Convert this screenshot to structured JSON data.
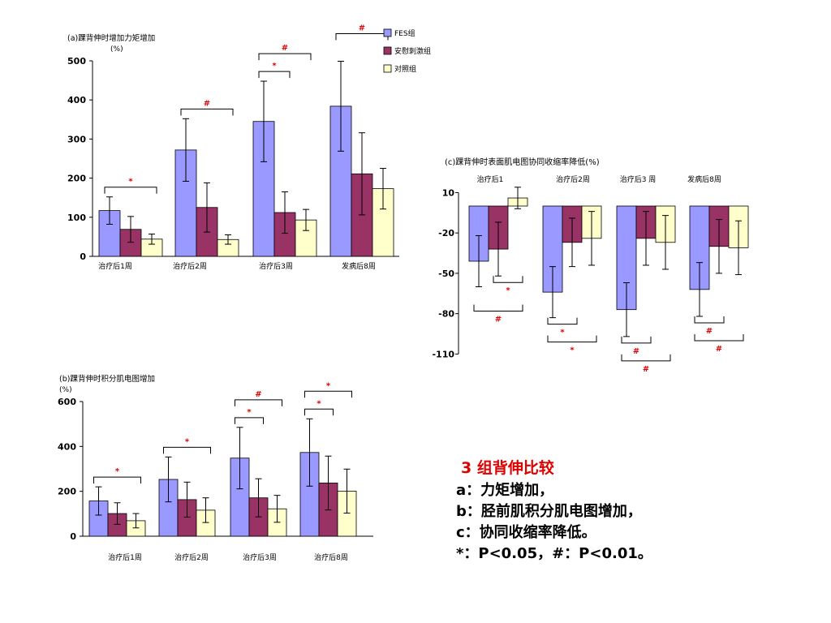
{
  "colors": {
    "fes": "#9999ff",
    "placebo": "#993366",
    "control": "#ffffcc",
    "sig": "#e00000",
    "axis": "#000000"
  },
  "legend": {
    "items": [
      {
        "label": "FES组",
        "key": "fes"
      },
      {
        "label": "安慰刺激组",
        "key": "placebo"
      },
      {
        "label": "对照组",
        "key": "control"
      }
    ]
  },
  "chart_data": [
    {
      "id": "a",
      "type": "bar",
      "title": "(a)踝背伸时增加力矩增加",
      "ylabel": "(%)",
      "categories": [
        "治疗后1周",
        "治疗后2周",
        "治疗后3周",
        "发病后8周"
      ],
      "ylim": [
        0,
        500
      ],
      "yticks": [
        0,
        100,
        200,
        300,
        400,
        500
      ],
      "series": [
        {
          "name": "FES组",
          "key": "fes",
          "values": [
            117,
            272,
            345,
            384
          ],
          "errors": [
            35,
            80,
            103,
            115
          ]
        },
        {
          "name": "安慰刺激组",
          "key": "placebo",
          "values": [
            69,
            125,
            112,
            211
          ],
          "errors": [
            33,
            63,
            53,
            105
          ]
        },
        {
          "name": "对照组",
          "key": "control",
          "values": [
            44,
            43,
            93,
            173
          ],
          "errors": [
            13,
            12,
            27,
            52
          ]
        }
      ],
      "annotations": [
        {
          "label": "*",
          "cat": 0,
          "from": 0,
          "to": 2,
          "level": 1
        },
        {
          "label": "#",
          "cat": 1,
          "from": 0,
          "to": 2,
          "level": 1
        },
        {
          "label": "*",
          "cat": 2,
          "from": 0,
          "to": 1,
          "level": 1
        },
        {
          "label": "#",
          "cat": 2,
          "from": 0,
          "to": 2,
          "level": 2
        },
        {
          "label": "#",
          "cat": 3,
          "from": 0,
          "to": 2,
          "level": 2
        }
      ]
    },
    {
      "id": "b",
      "type": "bar",
      "title": "(b)踝背伸时积分肌电图增加",
      "ylabel": "(%)",
      "categories": [
        "治疗后1周",
        "治疗后2周",
        "治疗后3周",
        "治疗后8周"
      ],
      "ylim": [
        0,
        600
      ],
      "yticks": [
        0,
        200,
        400,
        600
      ],
      "series": [
        {
          "name": "FES组",
          "key": "fes",
          "values": [
            157,
            253,
            348,
            373
          ],
          "errors": [
            63,
            100,
            137,
            150
          ]
        },
        {
          "name": "安慰刺激组",
          "key": "placebo",
          "values": [
            101,
            163,
            171,
            237
          ],
          "errors": [
            48,
            78,
            85,
            120
          ]
        },
        {
          "name": "对照组",
          "key": "control",
          "values": [
            69,
            116,
            122,
            201
          ],
          "errors": [
            32,
            55,
            60,
            98
          ]
        }
      ],
      "annotations": [
        {
          "label": "*",
          "cat": 0,
          "from": 0,
          "to": 2,
          "level": 1
        },
        {
          "label": "*",
          "cat": 1,
          "from": 0,
          "to": 2,
          "level": 1
        },
        {
          "label": "*",
          "cat": 2,
          "from": 0,
          "to": 1,
          "level": 1
        },
        {
          "label": "#",
          "cat": 2,
          "from": 0,
          "to": 2,
          "level": 2
        },
        {
          "label": "*",
          "cat": 3,
          "from": 0,
          "to": 1,
          "level": 1
        },
        {
          "label": "*",
          "cat": 3,
          "from": 0,
          "to": 2,
          "level": 2
        }
      ]
    },
    {
      "id": "c",
      "type": "bar",
      "title": "(c)踝背伸时表面肌电图协同收缩率降低(%)",
      "categories": [
        "治疗后1",
        "治疗后2周",
        "治疗后3 周",
        "发病后8周"
      ],
      "ylim": [
        -110,
        10
      ],
      "yticks": [
        10,
        -20,
        -50,
        -80,
        -110
      ],
      "series": [
        {
          "name": "FES组",
          "key": "fes",
          "values": [
            -41,
            -64,
            -77,
            -62
          ],
          "errors": [
            19,
            19,
            20,
            20
          ]
        },
        {
          "name": "安慰刺激组",
          "key": "placebo",
          "values": [
            -32,
            -27,
            -24,
            -30
          ],
          "errors": [
            20,
            18,
            20,
            20
          ]
        },
        {
          "name": "对照组",
          "key": "control",
          "values": [
            6,
            -24,
            -27,
            -31
          ],
          "errors": [
            8,
            20,
            20,
            20
          ]
        }
      ],
      "annotations": [
        {
          "label": "*",
          "cat": 0,
          "from": 1,
          "to": 2,
          "level": 1
        },
        {
          "label": "#",
          "cat": 0,
          "from": 0,
          "to": 2,
          "level": 2
        },
        {
          "label": "*",
          "cat": 1,
          "from": 0,
          "to": 1,
          "level": 1
        },
        {
          "label": "*",
          "cat": 1,
          "from": 0,
          "to": 2,
          "level": 2
        },
        {
          "label": "#",
          "cat": 2,
          "from": 0,
          "to": 1,
          "level": 1
        },
        {
          "label": "#",
          "cat": 2,
          "from": 0,
          "to": 2,
          "level": 2
        },
        {
          "label": "#",
          "cat": 3,
          "from": 0,
          "to": 1,
          "level": 1
        },
        {
          "label": "#",
          "cat": 3,
          "from": 0,
          "to": 2,
          "level": 2
        }
      ]
    }
  ],
  "summary": {
    "title": "3 组背伸比较",
    "lines": [
      "a：力矩增加，",
      "b：胫前肌积分肌电图增加，",
      "c：协同收缩率降低。",
      "*：P<0.05，#：P<0.01。"
    ]
  }
}
